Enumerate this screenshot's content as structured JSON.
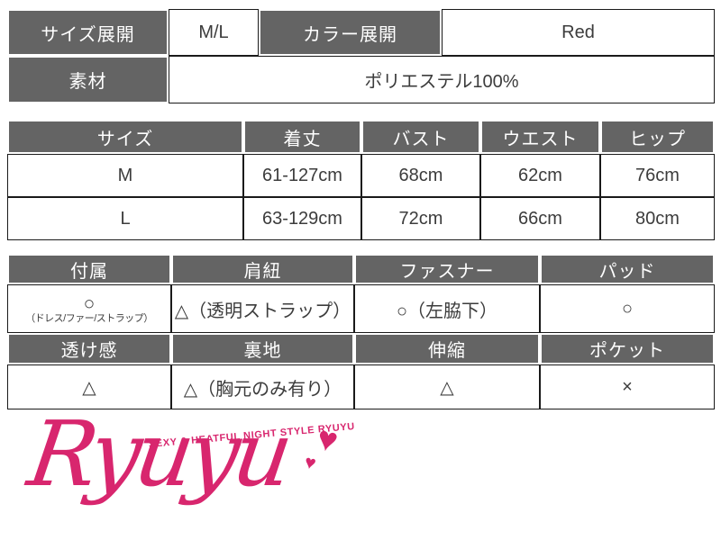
{
  "colors": {
    "header_bg": "#646464",
    "header_text": "#ffffff",
    "cell_text": "#3c3c3c",
    "border": "#1a1a1a",
    "brand_pink": "#d8266e"
  },
  "info_table": {
    "size_label": "サイズ展開",
    "size_value": "M/L",
    "color_label": "カラー展開",
    "color_value": "Red",
    "material_label": "素材",
    "material_value": "ポリエステル100%"
  },
  "size_table": {
    "headers": [
      "サイズ",
      "着丈",
      "バスト",
      "ウエスト",
      "ヒップ"
    ],
    "rows": [
      {
        "size": "M",
        "length": "61-127cm",
        "bust": "68cm",
        "waist": "62cm",
        "hip": "76cm"
      },
      {
        "size": "L",
        "length": "63-129cm",
        "bust": "72cm",
        "waist": "66cm",
        "hip": "80cm"
      }
    ]
  },
  "detail_table": {
    "attachment_label": "付属",
    "attachment_symbol": "○",
    "attachment_note": "（ドレス/ファー/ストラップ）",
    "strap_label": "肩紐",
    "strap_value": "△（透明ストラップ）",
    "fastener_label": "ファスナー",
    "fastener_value": "○（左脇下）",
    "pad_label": "パッド",
    "pad_value": "○",
    "sheer_label": "透け感",
    "sheer_value": "△",
    "lining_label": "裏地",
    "lining_value": "△（胸元のみ有り）",
    "stretch_label": "伸縮",
    "stretch_value": "△",
    "pocket_label": "ポケット",
    "pocket_value": "×"
  },
  "logo": {
    "brand": "Ryuyu",
    "tagline": "SEXY & HEATFUL NIGHT STYLE RYUYU",
    "heart": "♥"
  }
}
